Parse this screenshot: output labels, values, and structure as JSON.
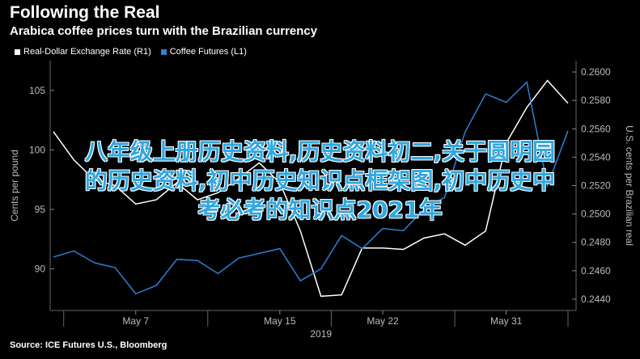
{
  "header": {
    "title": "Following the Real",
    "subtitle": "Arabica coffee prices turn with the Brazilian currency"
  },
  "legend": {
    "items": [
      {
        "label": "Real-Dollar Exchange Rate (R1)",
        "color": "#ffffff"
      },
      {
        "label": "Coffee Futures (L1)",
        "color": "#2f7fd6"
      }
    ]
  },
  "source": "Source: ICE Futures U.S., Bloomberg",
  "overlay_text": {
    "line1": "八年级上册历史资料,历史资料初二,关于圆明园",
    "line2": "的历史资料,初中历史知识点框架图,初中历史中",
    "line3": "考必考的知识点2021年"
  },
  "chart_data": {
    "type": "line",
    "title": "Following the Real",
    "subtitle": "Arabica coffee prices turn with the Brazilian currency",
    "xlabel": "",
    "x_ticks": [
      "May 7",
      "May 15",
      "May 22",
      "May 31"
    ],
    "year_label": "2019",
    "left_axis": {
      "label": "Cents per pound",
      "ticks": [
        90,
        95,
        100,
        105
      ],
      "range": [
        86.5,
        107.5
      ]
    },
    "right_axis": {
      "label": "U.S. cents per Brazilian real",
      "ticks": [
        "0.2440",
        "0.2460",
        "0.2480",
        "0.2500",
        "0.2520",
        "0.2540",
        "0.2560",
        "0.2580",
        "0.2600"
      ],
      "range": [
        0.2432,
        0.2608
      ]
    },
    "grid": false,
    "legend_position": "top-left",
    "x_index": [
      0,
      1,
      2,
      3,
      4,
      5,
      6,
      7,
      8,
      9,
      10,
      11,
      12,
      13,
      14,
      15,
      16,
      17,
      18,
      19,
      20,
      21,
      22,
      23,
      24,
      25
    ],
    "series": [
      {
        "name": "Real-Dollar Exchange Rate (R1)",
        "axis": "right",
        "color": "#ffffff",
        "values": [
          0.2558,
          0.2538,
          0.2524,
          0.252,
          0.2507,
          0.251,
          0.2522,
          0.251,
          0.2515,
          0.2525,
          0.2536,
          0.2522,
          0.2488,
          0.2442,
          0.2443,
          0.2476,
          0.2476,
          0.2475,
          0.2483,
          0.2486,
          0.2478,
          0.2488,
          0.255,
          0.2575,
          0.2594,
          0.2578
        ]
      },
      {
        "name": "Coffee Futures (L1)",
        "axis": "left",
        "color": "#2f7fd6",
        "values": [
          91.0,
          91.5,
          90.5,
          90.1,
          87.9,
          88.6,
          90.8,
          90.7,
          89.6,
          90.9,
          91.3,
          91.7,
          89.0,
          90.0,
          92.8,
          91.7,
          93.4,
          93.2,
          95.0,
          96.0,
          101.5,
          104.7,
          104.0,
          105.7,
          97.0,
          101.6
        ]
      }
    ]
  }
}
